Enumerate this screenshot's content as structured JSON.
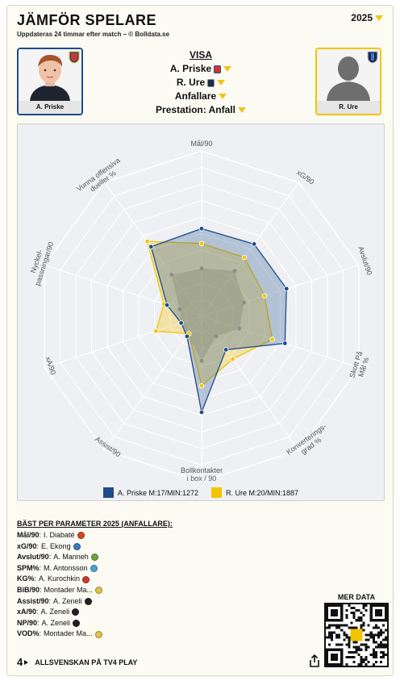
{
  "header": {
    "title": "JÄMFÖR SPELARE",
    "subtitle": "Uppdateras 24 timmar efter match – © Bolldata.se",
    "year": "2025"
  },
  "players": {
    "left": {
      "name": "A. Priske",
      "color": "#1e4b8a"
    },
    "right": {
      "name": "R. Ure",
      "color": "#f2c500"
    }
  },
  "visa": {
    "heading": "VISA",
    "player1": "A. Priske",
    "player2": "R. Ure",
    "position": "Anfallare",
    "prestation": "Prestation: Anfall"
  },
  "chart_data": {
    "type": "radar",
    "axes": [
      "Mål/90",
      "xG/90",
      "Avslut/90",
      "Skott På Mål %",
      "Konverterings-grad %",
      "Bollkontakter i box / 90",
      "Assist/90",
      "xA/90",
      "Nyckel-passningar/90",
      "Vunna offensiva dueller %"
    ],
    "max": 1.0,
    "rings": 10,
    "series": [
      {
        "name": "A. Priske M:17/MIN:1272",
        "color": "#1e4b8a",
        "values": [
          0.53,
          0.54,
          0.54,
          0.53,
          0.25,
          0.58,
          0.15,
          0.13,
          0.22,
          0.52
        ]
      },
      {
        "name": "R. Ure M:20/MIN:1887",
        "color": "#f2c500",
        "values": [
          0.44,
          0.44,
          0.4,
          0.45,
          0.32,
          0.42,
          0.13,
          0.29,
          0.24,
          0.56
        ]
      },
      {
        "name": "",
        "color": "#8c8c8c",
        "values": [
          0.29,
          0.34,
          0.27,
          0.24,
          0.15,
          0.27,
          0.14,
          0.13,
          0.14,
          0.31
        ]
      }
    ]
  },
  "best": {
    "heading": "BÄST PER PARAMETER 2025 (ANFALLARE):",
    "rows": [
      {
        "label": "Mål/90",
        "value": "I. Diabaté",
        "club_color": "#d04a1f"
      },
      {
        "label": "xG/90",
        "value": "E. Ekong",
        "club_color": "#3a78c2"
      },
      {
        "label": "Avslut/90",
        "value": "A. Manneh",
        "club_color": "#6aa83e"
      },
      {
        "label": "SPM%",
        "value": "M. Antonsson",
        "club_color": "#4aa0d8"
      },
      {
        "label": "KG%",
        "value": "A. Kurochkin",
        "club_color": "#c83a2a"
      },
      {
        "label": "BiB/90",
        "value": "Montader Ma...",
        "club_color": "#e0c24a"
      },
      {
        "label": "Assist/90",
        "value": "A. Zeneli",
        "club_color": "#222222"
      },
      {
        "label": "xA/90",
        "value": "A. Zeneli",
        "club_color": "#222222"
      },
      {
        "label": "NP/90",
        "value": "A. Zeneli",
        "club_color": "#222222"
      },
      {
        "label": "VOD%",
        "value": "Montader Ma...",
        "club_color": "#e0c24a"
      }
    ]
  },
  "qr": {
    "label": "MER DATA"
  },
  "footer": {
    "logo": "4",
    "text": "ALLSVENSKAN PÅ TV4 PLAY"
  }
}
